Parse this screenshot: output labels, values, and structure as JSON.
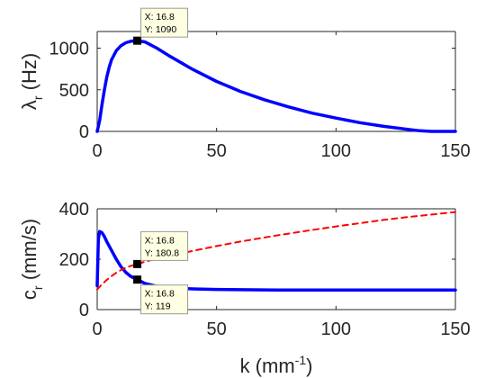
{
  "colors": {
    "wavelength_line": "#0000ff",
    "speed_solid_line": "#0000ff",
    "speed_dashed_line": "#ff0000",
    "axis": "#262626",
    "datatip_bg": "#ffffe1",
    "datatip_border": "#999999",
    "marker": "#000000"
  },
  "chart_data": [
    {
      "type": "line",
      "ylabel_symbol": "λ",
      "ylabel_subscript": "r",
      "ylabel_unit": " (Hz)",
      "xlim": [
        0,
        150
      ],
      "ylim": [
        0,
        1200
      ],
      "xticks": [
        "0",
        "50",
        "100",
        "150"
      ],
      "yticks": [
        "0",
        "500",
        "1000"
      ],
      "xtick_values": [
        0,
        50,
        100,
        150
      ],
      "ytick_values": [
        0,
        500,
        1000
      ],
      "series": [
        {
          "style": "solid",
          "x": [
            0,
            1,
            2,
            3,
            4,
            5,
            6,
            8,
            10,
            12,
            14,
            16.8,
            20,
            25,
            30,
            40,
            50,
            60,
            70,
            80,
            90,
            100,
            110,
            120,
            130,
            135,
            140,
            150
          ],
          "y": [
            0,
            130,
            320,
            500,
            650,
            770,
            860,
            970,
            1030,
            1065,
            1082,
            1090,
            1075,
            1000,
            910,
            745,
            600,
            480,
            380,
            295,
            220,
            160,
            105,
            60,
            25,
            8,
            0,
            0
          ]
        }
      ],
      "datatips": [
        {
          "x": 16.8,
          "y": 1090,
          "x_text": "X: 16.8",
          "y_text": "Y: 1090",
          "placement": "above"
        }
      ]
    },
    {
      "type": "line",
      "ylabel_symbol": "c",
      "ylabel_subscript": "r",
      "ylabel_unit": " (mm/s)",
      "xlabel_main": "k (mm",
      "xlabel_sup": "-1",
      "xlabel_end": ")",
      "xlim": [
        0,
        150
      ],
      "ylim": [
        0,
        400
      ],
      "xticks": [
        "0",
        "50",
        "100",
        "150"
      ],
      "yticks": [
        "0",
        "200",
        "400"
      ],
      "xtick_values": [
        0,
        50,
        100,
        150
      ],
      "ytick_values": [
        0,
        200,
        400
      ],
      "series": [
        {
          "style": "solid",
          "x": [
            0,
            0.5,
            1,
            2,
            3,
            4,
            6,
            8,
            10,
            12,
            14,
            16.8,
            20,
            25,
            30,
            40,
            50,
            75,
            100,
            125,
            150
          ],
          "y": [
            95,
            280,
            310,
            305,
            290,
            270,
            235,
            200,
            170,
            148,
            132,
            119,
            104,
            92,
            86,
            82,
            80,
            78,
            78,
            78,
            78
          ]
        },
        {
          "style": "dashed",
          "x": [
            0,
            2,
            4,
            6,
            8,
            10,
            12,
            14,
            16.8,
            20,
            25,
            30,
            40,
            50,
            60,
            75,
            90,
            100,
            110,
            120,
            130,
            140,
            150
          ],
          "y": [
            80,
            100,
            118,
            133,
            146,
            157,
            166,
            173,
            180.8,
            190,
            202,
            213,
            233,
            252,
            270,
            294,
            316,
            330,
            343,
            356,
            367,
            377,
            387
          ]
        }
      ],
      "datatips": [
        {
          "x": 16.8,
          "y": 180.8,
          "x_text": "X: 16.8",
          "y_text": "Y: 180.8",
          "placement": "above"
        },
        {
          "x": 16.8,
          "y": 119,
          "x_text": "X: 16.8",
          "y_text": "Y: 119",
          "placement": "below"
        }
      ]
    }
  ]
}
